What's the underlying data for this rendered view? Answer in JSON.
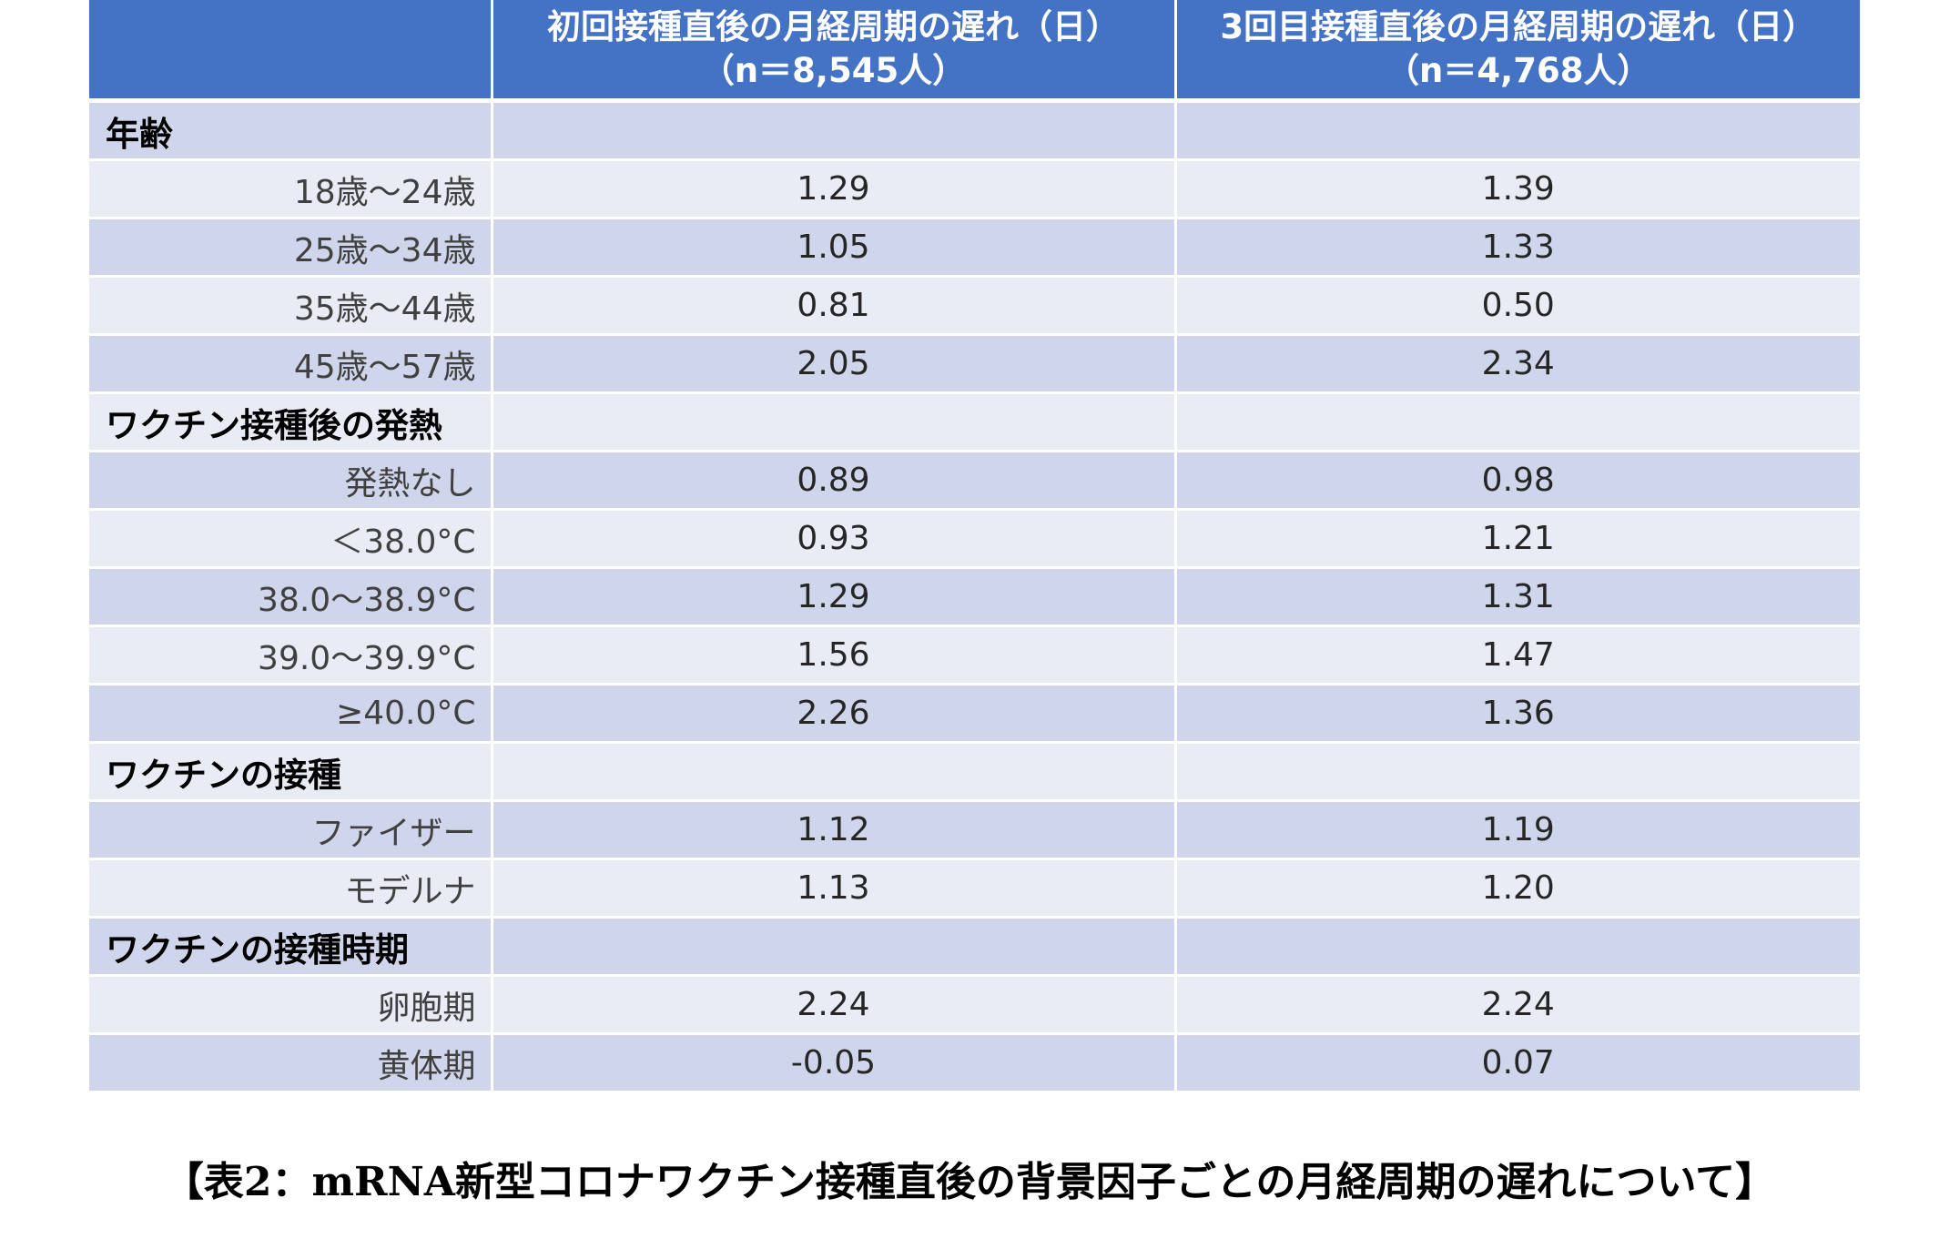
{
  "table": {
    "header": {
      "col0": "",
      "col1_line1": "初回接種直後の月経周期の遅れ（日）",
      "col1_line2": "（n＝8,545人）",
      "col2_line1": "3回目接種直後の月経周期の遅れ（日）",
      "col2_line2": "（n＝4,768人）"
    },
    "rows": [
      {
        "label": "年齢",
        "first": "",
        "third": ""
      },
      {
        "label": "18歳～24歳",
        "first": "1.29",
        "third": "1.39"
      },
      {
        "label": "25歳～34歳",
        "first": "1.05",
        "third": "1.33"
      },
      {
        "label": "35歳～44歳",
        "first": "0.81",
        "third": "0.50"
      },
      {
        "label": "45歳～57歳",
        "first": "2.05",
        "third": "2.34"
      },
      {
        "label": "ワクチン接種後の発熱",
        "first": "",
        "third": ""
      },
      {
        "label": "発熱なし",
        "first": "0.89",
        "third": "0.98"
      },
      {
        "label": "＜38.0°C",
        "first": "0.93",
        "third": "1.21"
      },
      {
        "label": "38.0～38.9°C",
        "first": "1.29",
        "third": "1.31"
      },
      {
        "label": "39.0～39.9°C",
        "first": "1.56",
        "third": "1.47"
      },
      {
        "label": "≥40.0°C",
        "first": "2.26",
        "third": "1.36"
      },
      {
        "label": "ワクチンの接種",
        "first": "",
        "third": ""
      },
      {
        "label": "ファイザー",
        "first": "1.12",
        "third": "1.19"
      },
      {
        "label": "モデルナ",
        "first": "1.13",
        "third": "1.20"
      },
      {
        "label": "ワクチンの接種時期",
        "first": "",
        "third": ""
      },
      {
        "label": "卵胞期",
        "first": "2.24",
        "third": "2.24"
      },
      {
        "label": "黄体期",
        "first": "-0.05",
        "third": "0.07"
      }
    ]
  },
  "caption": "【表2：mRNA新型コロナワクチン接種直後の背景因子ごとの月経周期の遅れについて】"
}
